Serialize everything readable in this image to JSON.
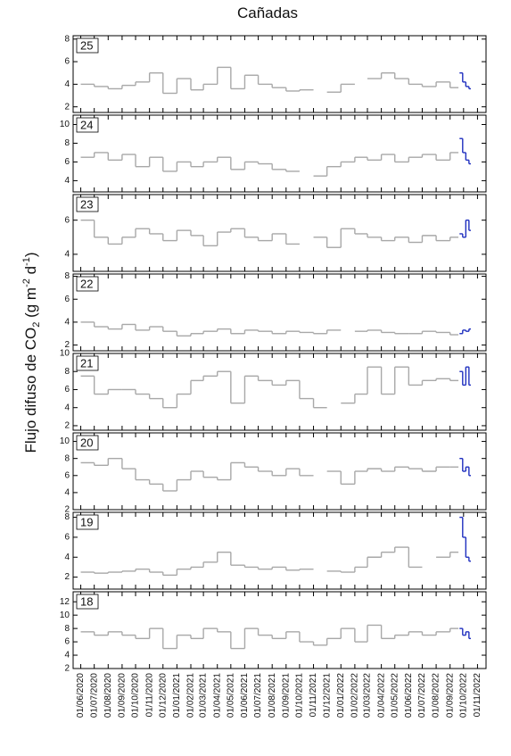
{
  "title": "Cañadas",
  "ylabel": {
    "main": "Flujo difuso de CO",
    "sub": "2",
    "open": " (g m",
    "exp1": "-2",
    "mid": " d",
    "exp2": "-1",
    "close": ")"
  },
  "chart_data": [
    {
      "type": "line",
      "label": "25",
      "ylim": [
        1.5,
        8.3
      ],
      "yticks": [
        2,
        4,
        6,
        8
      ],
      "series": [
        {
          "color": "#a8a8a8",
          "x": [
            "01/06/2020",
            "01/07/2020",
            "01/08/2020",
            "01/09/2020",
            "01/10/2020",
            "01/11/2020",
            "01/12/2020",
            "01/01/2021",
            "01/02/2021",
            "01/03/2021",
            "01/04/2021",
            "01/05/2021",
            "01/06/2021",
            "01/07/2021",
            "01/08/2021",
            "01/09/2021",
            "01/10/2021",
            "01/11/2021",
            "01/12/2021",
            "01/01/2022",
            "01/02/2022",
            "01/03/2022",
            "01/04/2022",
            "01/05/2022",
            "01/06/2022",
            "01/07/2022",
            "01/08/2022",
            "01/09/2022"
          ],
          "values": [
            4,
            3.8,
            3.6,
            3.9,
            4.2,
            5,
            3.2,
            4.5,
            3.5,
            4,
            5.5,
            3.6,
            4.8,
            4,
            3.7,
            3.4,
            3.5,
            null,
            3.3,
            4,
            null,
            4.5,
            5,
            4.5,
            4,
            3.8,
            4.2,
            3.7
          ]
        },
        {
          "color": "#1f2fbf",
          "x": [
            "22/09/2022",
            "29/09/2022",
            "06/10/2022",
            "13/10/2022"
          ],
          "values": [
            5,
            4.2,
            3.8,
            3.6
          ]
        }
      ]
    },
    {
      "type": "line",
      "label": "24",
      "ylim": [
        2.8,
        11
      ],
      "yticks": [
        4,
        6,
        8,
        10
      ],
      "series": [
        {
          "color": "#a8a8a8",
          "x": [
            "01/06/2020",
            "01/07/2020",
            "01/08/2020",
            "01/09/2020",
            "01/10/2020",
            "01/11/2020",
            "01/12/2020",
            "01/01/2021",
            "01/02/2021",
            "01/03/2021",
            "01/04/2021",
            "01/05/2021",
            "01/06/2021",
            "01/07/2021",
            "01/08/2021",
            "01/09/2021",
            "01/10/2021",
            "01/11/2021",
            "01/12/2021",
            "01/01/2022",
            "01/02/2022",
            "01/03/2022",
            "01/04/2022",
            "01/05/2022",
            "01/06/2022",
            "01/07/2022",
            "01/08/2022",
            "01/09/2022"
          ],
          "values": [
            6.5,
            7,
            6.2,
            6.8,
            5.5,
            6.5,
            5,
            6,
            5.5,
            6,
            6.5,
            5.2,
            6,
            5.8,
            5.2,
            5,
            null,
            4.5,
            5.5,
            6,
            6.5,
            6.2,
            6.8,
            6,
            6.5,
            6.8,
            6.2,
            7
          ]
        },
        {
          "color": "#1f2fbf",
          "x": [
            "22/09/2022",
            "29/09/2022",
            "06/10/2022",
            "13/10/2022"
          ],
          "values": [
            8.5,
            7,
            6.2,
            5.8
          ]
        }
      ]
    },
    {
      "type": "line",
      "label": "23",
      "ylim": [
        3,
        7.5
      ],
      "yticks": [
        4,
        6
      ],
      "series": [
        {
          "color": "#a8a8a8",
          "x": [
            "01/06/2020",
            "01/07/2020",
            "01/08/2020",
            "01/09/2020",
            "01/10/2020",
            "01/11/2020",
            "01/12/2020",
            "01/01/2021",
            "01/02/2021",
            "01/03/2021",
            "01/04/2021",
            "01/05/2021",
            "01/06/2021",
            "01/07/2021",
            "01/08/2021",
            "01/09/2021",
            "01/10/2021",
            "01/11/2021",
            "01/12/2021",
            "01/01/2022",
            "01/02/2022",
            "01/03/2022",
            "01/04/2022",
            "01/05/2022",
            "01/06/2022",
            "01/07/2022",
            "01/08/2022",
            "01/09/2022"
          ],
          "values": [
            6,
            5,
            4.6,
            5,
            5.5,
            5.2,
            4.8,
            5.4,
            5.1,
            4.5,
            5.3,
            5.5,
            5,
            4.8,
            5.2,
            4.6,
            null,
            5,
            4.4,
            5.5,
            5.2,
            5,
            4.8,
            5,
            4.7,
            5.1,
            4.8,
            5
          ]
        },
        {
          "color": "#1f2fbf",
          "x": [
            "22/09/2022",
            "29/09/2022",
            "06/10/2022",
            "13/10/2022"
          ],
          "values": [
            5.2,
            5,
            6,
            5.4
          ]
        }
      ]
    },
    {
      "type": "line",
      "label": "22",
      "ylim": [
        1.5,
        8.2
      ],
      "yticks": [
        2,
        4,
        6,
        8
      ],
      "series": [
        {
          "color": "#a8a8a8",
          "x": [
            "01/06/2020",
            "01/07/2020",
            "01/08/2020",
            "01/09/2020",
            "01/10/2020",
            "01/11/2020",
            "01/12/2020",
            "01/01/2021",
            "01/02/2021",
            "01/03/2021",
            "01/04/2021",
            "01/05/2021",
            "01/06/2021",
            "01/07/2021",
            "01/08/2021",
            "01/09/2021",
            "01/10/2021",
            "01/11/2021",
            "01/12/2021",
            "01/01/2022",
            "01/02/2022",
            "01/03/2022",
            "01/04/2022",
            "01/05/2022",
            "01/06/2022",
            "01/07/2022",
            "01/08/2022",
            "01/09/2022"
          ],
          "values": [
            4,
            3.6,
            3.4,
            3.8,
            3.3,
            3.6,
            3.2,
            2.8,
            3,
            3.2,
            3.4,
            3,
            3.3,
            3.2,
            3,
            3.2,
            3.1,
            3,
            3.3,
            null,
            3.2,
            3.3,
            3.1,
            3,
            3,
            3.2,
            3.1,
            2.9
          ]
        },
        {
          "color": "#1f2fbf",
          "x": [
            "22/09/2022",
            "29/09/2022",
            "06/10/2022",
            "13/10/2022"
          ],
          "values": [
            3,
            3.3,
            3.2,
            3.4
          ]
        }
      ]
    },
    {
      "type": "line",
      "label": "21",
      "ylim": [
        1.5,
        10
      ],
      "yticks": [
        2,
        4,
        6,
        8,
        10
      ],
      "series": [
        {
          "color": "#a8a8a8",
          "x": [
            "01/06/2020",
            "01/07/2020",
            "01/08/2020",
            "01/09/2020",
            "01/10/2020",
            "01/11/2020",
            "01/12/2020",
            "01/01/2021",
            "01/02/2021",
            "01/03/2021",
            "01/04/2021",
            "01/05/2021",
            "01/06/2021",
            "01/07/2021",
            "01/08/2021",
            "01/09/2021",
            "01/10/2021",
            "01/11/2021",
            "01/12/2021",
            "01/01/2022",
            "01/02/2022",
            "01/03/2022",
            "01/04/2022",
            "01/05/2022",
            "01/06/2022",
            "01/07/2022",
            "01/08/2022",
            "01/09/2022"
          ],
          "values": [
            7.5,
            5.5,
            6,
            6,
            5.5,
            5,
            4,
            5.5,
            7,
            7.5,
            8,
            4.5,
            7.5,
            7,
            6.5,
            7,
            5,
            4,
            null,
            4.5,
            5.5,
            8.5,
            5.5,
            8.5,
            6.5,
            7,
            7.2,
            7
          ]
        },
        {
          "color": "#1f2fbf",
          "x": [
            "22/09/2022",
            "29/09/2022",
            "06/10/2022",
            "13/10/2022"
          ],
          "values": [
            8,
            6.5,
            8.5,
            6.5
          ]
        }
      ]
    },
    {
      "type": "line",
      "label": "20",
      "ylim": [
        2,
        11
      ],
      "yticks": [
        2,
        4,
        6,
        8,
        10
      ],
      "series": [
        {
          "color": "#a8a8a8",
          "x": [
            "01/06/2020",
            "01/07/2020",
            "01/08/2020",
            "01/09/2020",
            "01/10/2020",
            "01/11/2020",
            "01/12/2020",
            "01/01/2021",
            "01/02/2021",
            "01/03/2021",
            "01/04/2021",
            "01/05/2021",
            "01/06/2021",
            "01/07/2021",
            "01/08/2021",
            "01/09/2021",
            "01/10/2021",
            "01/11/2021",
            "01/12/2021",
            "01/01/2022",
            "01/02/2022",
            "01/03/2022",
            "01/04/2022",
            "01/05/2022",
            "01/06/2022",
            "01/07/2022",
            "01/08/2022",
            "01/09/2022"
          ],
          "values": [
            7.5,
            7.2,
            8,
            6.8,
            5.5,
            5,
            4.2,
            5.5,
            6.5,
            5.8,
            5.5,
            7.5,
            7,
            6.5,
            6,
            6.8,
            6,
            null,
            6.5,
            5,
            6.5,
            6.8,
            6.5,
            7,
            6.8,
            6.5,
            7,
            7
          ]
        },
        {
          "color": "#1f2fbf",
          "x": [
            "22/09/2022",
            "29/09/2022",
            "06/10/2022",
            "13/10/2022"
          ],
          "values": [
            8,
            6.5,
            7,
            6
          ]
        }
      ]
    },
    {
      "type": "line",
      "label": "19",
      "ylim": [
        0.8,
        8.5
      ],
      "yticks": [
        2,
        4,
        6,
        8
      ],
      "series": [
        {
          "color": "#a8a8a8",
          "x": [
            "01/06/2020",
            "01/07/2020",
            "01/08/2020",
            "01/09/2020",
            "01/10/2020",
            "01/11/2020",
            "01/12/2020",
            "01/01/2021",
            "01/02/2021",
            "01/03/2021",
            "01/04/2021",
            "01/05/2021",
            "01/06/2021",
            "01/07/2021",
            "01/08/2021",
            "01/09/2021",
            "01/10/2021",
            "01/11/2021",
            "01/12/2021",
            "01/01/2022",
            "01/02/2022",
            "01/03/2022",
            "01/04/2022",
            "01/05/2022",
            "01/06/2022",
            "01/07/2022",
            "01/08/2022",
            "01/09/2022"
          ],
          "values": [
            2.5,
            2.4,
            2.5,
            2.6,
            2.8,
            2.5,
            2.2,
            2.8,
            3,
            3.5,
            4.5,
            3.2,
            3,
            2.8,
            3,
            2.7,
            2.8,
            null,
            2.6,
            2.5,
            3,
            4,
            4.5,
            5,
            3,
            null,
            4,
            4.5
          ]
        },
        {
          "color": "#1f2fbf",
          "x": [
            "22/09/2022",
            "29/09/2022",
            "06/10/2022",
            "13/10/2022"
          ],
          "values": [
            8,
            6,
            4,
            3.6
          ]
        }
      ]
    },
    {
      "type": "line",
      "label": "18",
      "ylim": [
        2,
        13.5
      ],
      "yticks": [
        2,
        4,
        6,
        8,
        10,
        12
      ],
      "xlim": [
        "15/05/2020",
        "20/11/2022"
      ],
      "xticks": [
        "01/06/2020",
        "01/07/2020",
        "01/08/2020",
        "01/09/2020",
        "01/10/2020",
        "01/11/2020",
        "01/12/2020",
        "01/01/2021",
        "01/02/2021",
        "01/03/2021",
        "01/04/2021",
        "01/05/2021",
        "01/06/2021",
        "01/07/2021",
        "01/08/2021",
        "01/09/2021",
        "01/10/2021",
        "01/11/2021",
        "01/12/2021",
        "01/01/2022",
        "01/02/2022",
        "01/03/2022",
        "01/04/2022",
        "01/05/2022",
        "01/06/2022",
        "01/07/2022",
        "01/08/2022",
        "01/09/2022",
        "01/10/2022",
        "01/11/2022"
      ],
      "series": [
        {
          "color": "#a8a8a8",
          "x": [
            "01/06/2020",
            "01/07/2020",
            "01/08/2020",
            "01/09/2020",
            "01/10/2020",
            "01/11/2020",
            "01/12/2020",
            "01/01/2021",
            "01/02/2021",
            "01/03/2021",
            "01/04/2021",
            "01/05/2021",
            "01/06/2021",
            "01/07/2021",
            "01/08/2021",
            "01/09/2021",
            "01/10/2021",
            "01/11/2021",
            "01/12/2021",
            "01/01/2022",
            "01/02/2022",
            "01/03/2022",
            "01/04/2022",
            "01/05/2022",
            "01/06/2022",
            "01/07/2022",
            "01/08/2022",
            "01/09/2022"
          ],
          "values": [
            7.5,
            7,
            7.5,
            7,
            6.5,
            8,
            5,
            7,
            6.5,
            8,
            7.5,
            5,
            8,
            7,
            6.5,
            7.5,
            6,
            5.5,
            6.5,
            8,
            6,
            8.5,
            6.5,
            7,
            7.5,
            7,
            7.5,
            8
          ]
        },
        {
          "color": "#1f2fbf",
          "x": [
            "22/09/2022",
            "29/09/2022",
            "06/10/2022",
            "13/10/2022"
          ],
          "values": [
            8,
            7,
            7.5,
            6.5
          ]
        }
      ]
    }
  ]
}
